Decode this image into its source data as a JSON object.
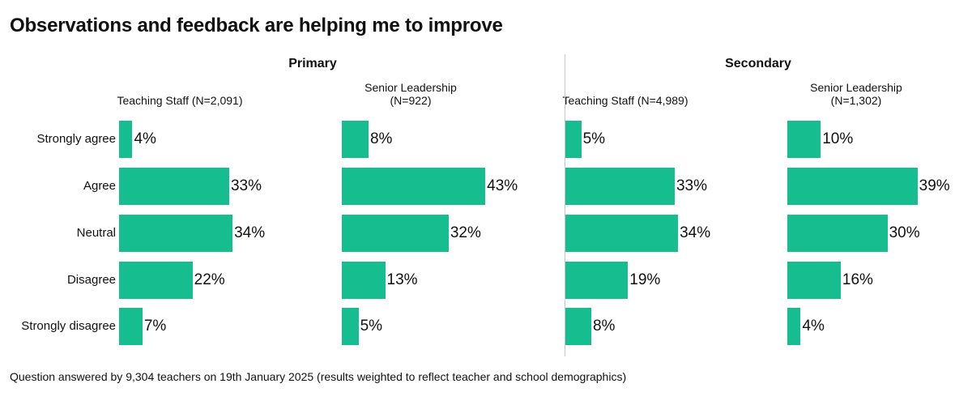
{
  "title": "Observations and feedback are helping me to improve",
  "footnote": "Question answered by 9,304 teachers on 19th January 2025 (results weighted to reflect teacher and school demographics)",
  "colors": {
    "bar": "#15BD8F",
    "text": "#111111",
    "divider": "#C8C8C8"
  },
  "chart_data": {
    "type": "bar",
    "orientation": "horizontal",
    "categories": [
      "Strongly agree",
      "Agree",
      "Neutral",
      "Disagree",
      "Strongly disagree"
    ],
    "groups": [
      {
        "name": "Primary",
        "panels": [
          {
            "name": "Teaching Staff (N=2,091)",
            "values": [
              4,
              33,
              34,
              22,
              7
            ],
            "labels": [
              "4%",
              "33%",
              "34%",
              "22%",
              "7%"
            ]
          },
          {
            "name": "Senior Leadership\n(N=922)",
            "values": [
              8,
              43,
              32,
              13,
              5
            ],
            "labels": [
              "8%",
              "43%",
              "32%",
              "13%",
              "5%"
            ]
          }
        ]
      },
      {
        "name": "Secondary",
        "panels": [
          {
            "name": "Teaching Staff (N=4,989)",
            "values": [
              5,
              33,
              34,
              19,
              8
            ],
            "labels": [
              "5%",
              "33%",
              "34%",
              "19%",
              "8%"
            ]
          },
          {
            "name": "Senior Leadership\n(N=1,302)",
            "values": [
              10,
              39,
              30,
              16,
              4
            ],
            "labels": [
              "10%",
              "39%",
              "30%",
              "16%",
              "4%"
            ]
          }
        ]
      }
    ],
    "unit": "%",
    "xlim": [
      0,
      43
    ],
    "grid": false
  }
}
